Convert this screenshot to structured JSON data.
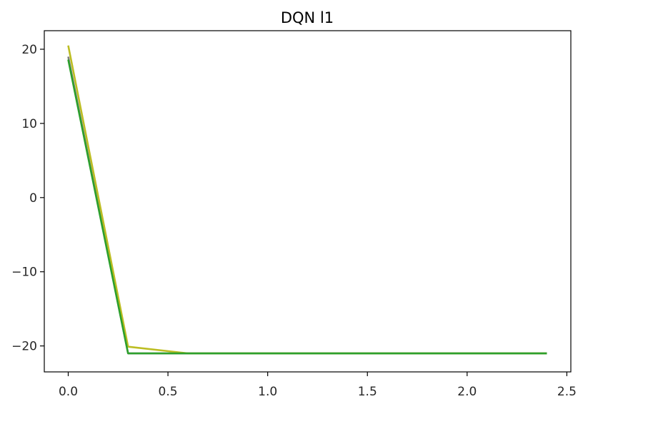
{
  "chart_data": {
    "type": "line",
    "title": "DQN l1",
    "xlabel": "",
    "ylabel": "",
    "xlim": [
      -0.12,
      2.52
    ],
    "ylim": [
      -23.5,
      22.5
    ],
    "x_ticks": [
      0.0,
      0.5,
      1.0,
      1.5,
      2.0,
      2.5
    ],
    "x_tick_labels": [
      "0.0",
      "0.5",
      "1.0",
      "1.5",
      "2.0",
      "2.5"
    ],
    "y_ticks": [
      20,
      10,
      0,
      -10,
      -20
    ],
    "y_tick_labels": [
      "20",
      "10",
      "0",
      "−10",
      "−20"
    ],
    "grid": false,
    "legend": false,
    "series": [
      {
        "color": "#7f7f7f",
        "x": [
          0.0,
          0.3,
          0.6,
          0.9,
          1.2,
          1.5,
          1.8,
          2.1,
          2.4
        ],
        "y": [
          19.0,
          -21.0,
          -21.0,
          -21.0,
          -21.0,
          -21.0,
          -21.0,
          -21.0,
          -21.0
        ]
      },
      {
        "color": "#bcbd22",
        "x": [
          0.0,
          0.3,
          0.6,
          0.9,
          1.2,
          1.5,
          1.8,
          2.1,
          2.4
        ],
        "y": [
          20.5,
          -20.1,
          -21.0,
          -21.0,
          -21.0,
          -21.0,
          -21.0,
          -21.0,
          -21.0
        ]
      },
      {
        "color": "#2ca02c",
        "x": [
          0.0,
          0.3,
          0.6,
          0.9,
          1.2,
          1.5,
          1.8,
          2.1,
          2.4
        ],
        "y": [
          18.6,
          -21.0,
          -21.0,
          -21.0,
          -21.0,
          -21.0,
          -21.0,
          -21.0,
          -21.0
        ]
      }
    ]
  }
}
